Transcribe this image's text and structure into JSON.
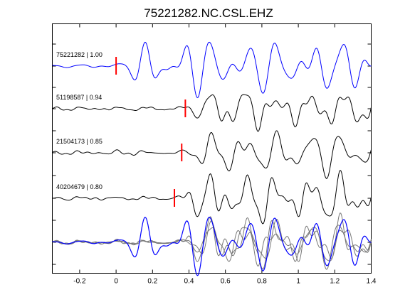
{
  "chart_data": {
    "type": "line",
    "title": "75221282.NC.CSL.EHZ",
    "xlabel": "",
    "ylabel": "",
    "xlim": [
      -0.35,
      1.4
    ],
    "x_ticks": [
      -0.2,
      0,
      0.2,
      0.4,
      0.6,
      0.8,
      1,
      1.2,
      1.4
    ],
    "x_tick_labels": [
      "-0.2",
      "0",
      "0.2",
      "0.4",
      "0.6",
      "0.8",
      "1",
      "1.2",
      "1.4"
    ],
    "grid": false,
    "legend": "none",
    "traces": [
      {
        "label": "75221282 | 1.00",
        "pick_time": 0.0,
        "color": "#0000ff"
      },
      {
        "label": "51198587 | 0.94",
        "pick_time": 0.38,
        "color": "#000000"
      },
      {
        "label": "21504173 | 0.85",
        "pick_time": 0.36,
        "color": "#000000"
      },
      {
        "label": "40204679 | 0.80",
        "pick_time": 0.32,
        "color": "#000000"
      }
    ],
    "overlay": {
      "reference_color": "#0000ff",
      "others_color": "#777777"
    },
    "pick_color": "#ff0000"
  }
}
